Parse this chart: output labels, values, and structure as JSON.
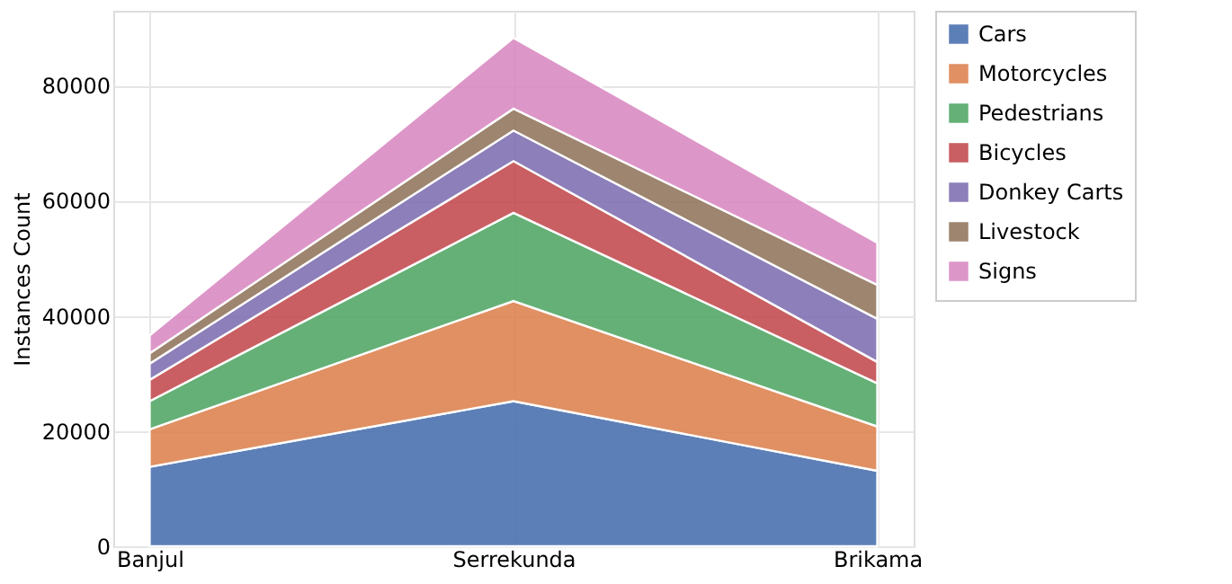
{
  "chart_data": {
    "type": "area",
    "stacked": true,
    "ylabel": "Instances Count",
    "categories": [
      "Banjul",
      "Serrekunda",
      "Brikama"
    ],
    "series": [
      {
        "name": "Cars",
        "color": "#4c72b0",
        "values": [
          13800,
          25200,
          13100
        ]
      },
      {
        "name": "Motorcycles",
        "color": "#dd8452",
        "values": [
          6500,
          17400,
          7700
        ]
      },
      {
        "name": "Pedestrians",
        "color": "#55a868",
        "values": [
          4900,
          15300,
          7500
        ]
      },
      {
        "name": "Bicycles",
        "color": "#c44e52",
        "values": [
          3700,
          9000,
          3700
        ]
      },
      {
        "name": "Donkey Carts",
        "color": "#8172b3",
        "values": [
          2800,
          5300,
          7500
        ]
      },
      {
        "name": "Livestock",
        "color": "#937860",
        "values": [
          1800,
          3800,
          5900
        ]
      },
      {
        "name": "Signs",
        "color": "#da8bc3",
        "values": [
          3100,
          12300,
          7300
        ]
      }
    ],
    "ylim": [
      0,
      93000
    ],
    "yticks": [
      0,
      20000,
      40000,
      60000,
      80000
    ],
    "grid": true,
    "legend": "top right"
  }
}
